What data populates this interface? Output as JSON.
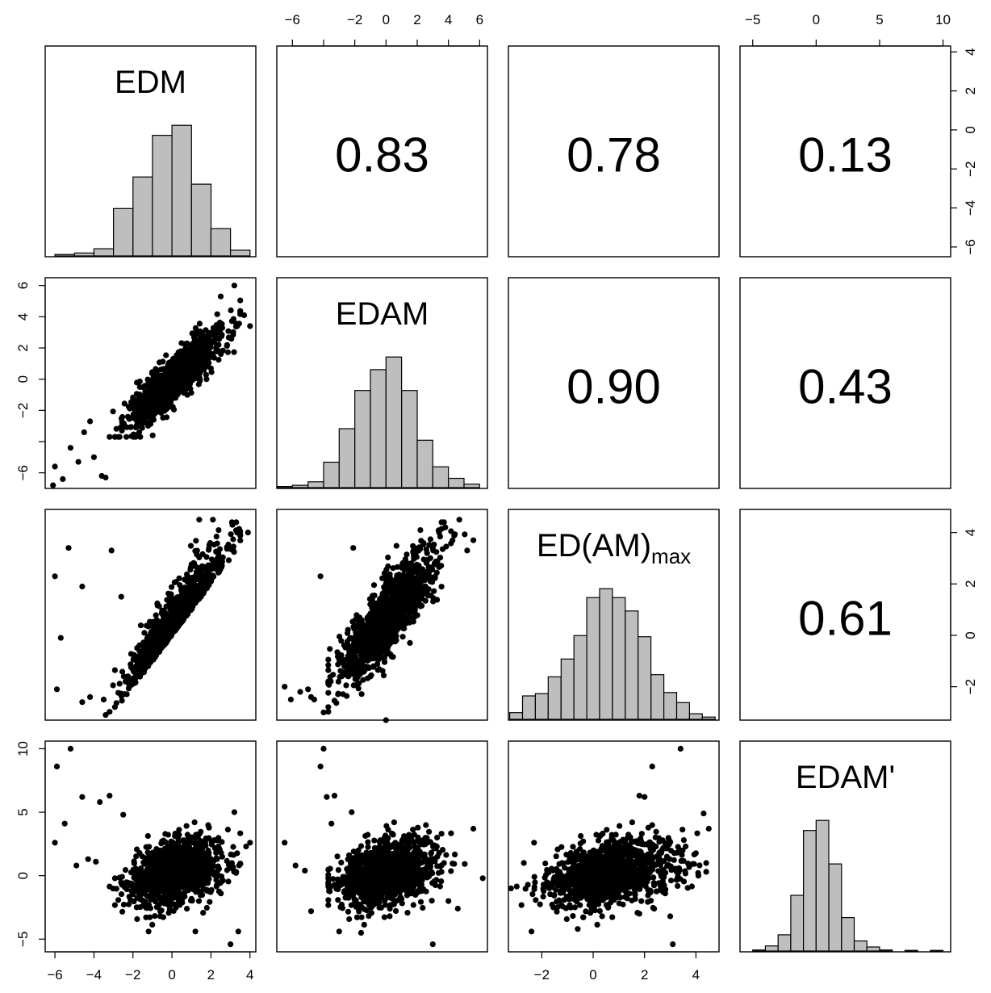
{
  "chart_data": {
    "type": "scatter",
    "kind": "pairs-matrix",
    "title": "",
    "variables": [
      {
        "key": "EDM",
        "label": "EDM",
        "label_base": "EDM",
        "label_sub": "",
        "range": [
          -6.5,
          4.3
        ],
        "ticks": [
          -6,
          -4,
          -2,
          0,
          2,
          4
        ]
      },
      {
        "key": "EDAM",
        "label": "EDAM",
        "label_base": "EDAM",
        "label_sub": "",
        "range": [
          -7.0,
          6.5
        ],
        "ticks": [
          -6,
          -4,
          -2,
          0,
          2,
          4,
          6
        ]
      },
      {
        "key": "EDAMmax",
        "label": "ED(AM)max",
        "label_base": "ED(AM)",
        "label_sub": "max",
        "range": [
          -3.3,
          4.9
        ],
        "ticks": [
          -2,
          0,
          2,
          4
        ]
      },
      {
        "key": "EDAMp",
        "label": "EDAM'",
        "label_base": "EDAM'",
        "label_sub": "",
        "range": [
          -6.0,
          10.6
        ],
        "ticks": [
          -5,
          0,
          5,
          10
        ]
      }
    ],
    "tick_labels": {
      "EDM": [
        "−6",
        "−4",
        "−2",
        "0",
        "2",
        "4"
      ],
      "EDAM": [
        "−6",
        "−4",
        "−2",
        "0",
        "2",
        "4",
        "6"
      ],
      "EDAMmax": [
        "−2",
        "0",
        "2",
        "4"
      ],
      "EDAMp": [
        "−5",
        "0",
        "5",
        "10"
      ]
    },
    "correlations": [
      {
        "row": 0,
        "col": 1,
        "value": "0.83"
      },
      {
        "row": 0,
        "col": 2,
        "value": "0.78"
      },
      {
        "row": 0,
        "col": 3,
        "value": "0.13"
      },
      {
        "row": 1,
        "col": 2,
        "value": "0.90"
      },
      {
        "row": 1,
        "col": 3,
        "value": "0.43"
      },
      {
        "row": 2,
        "col": 3,
        "value": "0.61"
      }
    ],
    "histograms": [
      {
        "variable": "EDM",
        "bins": [
          -6,
          -5,
          -4,
          -3,
          -2,
          -1,
          0,
          1,
          2,
          3,
          4
        ],
        "counts": [
          5,
          10,
          25,
          165,
          275,
          420,
          455,
          250,
          95,
          20
        ]
      },
      {
        "variable": "EDAM",
        "bins": [
          -7,
          -6,
          -5,
          -4,
          -3,
          -2,
          -1,
          0,
          1,
          2,
          3,
          4,
          5,
          6
        ],
        "counts": [
          5,
          10,
          25,
          110,
          255,
          420,
          510,
          565,
          420,
          205,
          90,
          40,
          15
        ]
      },
      {
        "variable": "EDAMmax",
        "bins": [
          -3.25,
          -2.75,
          -2.25,
          -1.75,
          -1.25,
          -0.75,
          -0.25,
          0.25,
          0.75,
          1.25,
          1.75,
          2.25,
          2.75,
          3.25,
          3.75,
          4.25,
          4.75
        ],
        "counts": [
          30,
          105,
          115,
          190,
          270,
          375,
          545,
          585,
          545,
          485,
          370,
          200,
          120,
          75,
          25,
          10
        ]
      },
      {
        "variable": "EDAMp",
        "bins": [
          -5,
          -4,
          -3,
          -2,
          -1,
          0,
          1,
          2,
          3,
          4,
          5,
          6,
          7,
          8,
          9,
          10,
          11
        ],
        "counts": [
          5,
          25,
          80,
          275,
          595,
          645,
          430,
          165,
          50,
          20,
          5,
          0,
          3,
          0,
          3,
          0
        ]
      }
    ],
    "scatter_notes": {
      "EDAM~EDM": {
        "relation": "positive linear",
        "slope": 1.12
      },
      "EDAMmax~EDM": {
        "relation": "bounded below by y = x",
        "slope": 1.0
      },
      "EDAMmax~EDAM": {
        "relation": "positive linear",
        "slope": 0.65
      },
      "EDAMp~EDM": {
        "relation": "weak",
        "slope": 0.15
      },
      "EDAMp~EDAM": {
        "relation": "weak positive",
        "slope": 0.3
      },
      "EDAMp~EDAMmax": {
        "relation": "moderate positive",
        "slope": 0.75
      }
    },
    "outliers": {
      "EDAM~EDM": [
        [
          -6.0,
          -5.6
        ],
        [
          -5.6,
          -6.4
        ],
        [
          -6.1,
          -6.8
        ],
        [
          -5.2,
          -4.4
        ],
        [
          -4.8,
          -5.3
        ],
        [
          -4.0,
          -5.0
        ],
        [
          -4.5,
          -3.4
        ],
        [
          -4.2,
          -2.7
        ],
        [
          -3.6,
          -6.2
        ],
        [
          -3.4,
          -6.3
        ],
        [
          2.5,
          5.3
        ],
        [
          3.2,
          6.0
        ],
        [
          3.7,
          4.1
        ],
        [
          4.0,
          3.4
        ]
      ],
      "EDAMmax~EDM": [
        [
          -6.0,
          2.3
        ],
        [
          -5.9,
          -2.1
        ],
        [
          -5.7,
          -0.1
        ],
        [
          -5.3,
          3.4
        ],
        [
          -4.6,
          1.9
        ],
        [
          -4.6,
          -2.6
        ],
        [
          -4.2,
          -2.4
        ],
        [
          -3.5,
          -2.5
        ],
        [
          -3.4,
          -3.1
        ],
        [
          -3.1,
          3.3
        ],
        [
          -2.6,
          1.5
        ],
        [
          1.4,
          4.5
        ],
        [
          2.1,
          4.5
        ],
        [
          3.1,
          4.3
        ],
        [
          3.9,
          4.0
        ]
      ],
      "EDAMmax~EDAM": [
        [
          -6.5,
          -2.0
        ],
        [
          -6.1,
          -2.5
        ],
        [
          -5.5,
          -2.2
        ],
        [
          -5.0,
          -2.1
        ],
        [
          -4.8,
          -2.4
        ],
        [
          -4.6,
          -2.5
        ],
        [
          -4.0,
          -3.0
        ],
        [
          -4.2,
          2.3
        ],
        [
          -2.1,
          3.4
        ],
        [
          1.9,
          3.2
        ],
        [
          3.8,
          4.2
        ],
        [
          4.7,
          4.5
        ],
        [
          5.6,
          3.7
        ],
        [
          5.2,
          3.3
        ],
        [
          -1.0,
          -1.6
        ],
        [
          0.0,
          -3.3
        ],
        [
          3.0,
          3.4
        ]
      ],
      "EDAMp~EDM": [
        [
          -5.9,
          8.6
        ],
        [
          -5.2,
          10.0
        ],
        [
          -5.5,
          4.1
        ],
        [
          -4.6,
          6.2
        ],
        [
          -4.3,
          1.3
        ],
        [
          -4.9,
          0.8
        ],
        [
          -3.7,
          5.8
        ],
        [
          -3.9,
          1.1
        ],
        [
          -3.2,
          6.3
        ],
        [
          -2.5,
          4.8
        ],
        [
          -6.0,
          2.6
        ],
        [
          3.0,
          -5.4
        ],
        [
          3.4,
          -4.4
        ],
        [
          3.2,
          5.0
        ],
        [
          3.8,
          2.3
        ],
        [
          4.0,
          2.6
        ],
        [
          1.2,
          -4.4
        ],
        [
          -1.2,
          -4.4
        ]
      ],
      "EDAMp~EDAM": [
        [
          -4.2,
          8.6
        ],
        [
          -4.0,
          10.0
        ],
        [
          -3.3,
          6.3
        ],
        [
          -3.8,
          6.2
        ],
        [
          -2.2,
          5.0
        ],
        [
          -5.2,
          0.4
        ],
        [
          -5.8,
          0.8
        ],
        [
          -6.5,
          2.6
        ],
        [
          -3.5,
          4.1
        ],
        [
          3.0,
          -5.4
        ],
        [
          4.6,
          -2.6
        ],
        [
          4.0,
          -2.0
        ],
        [
          5.6,
          3.7
        ],
        [
          6.2,
          -0.2
        ],
        [
          -4.8,
          -2.8
        ],
        [
          -3.0,
          -4.4
        ],
        [
          -1.6,
          -4.5
        ]
      ],
      "EDAMp~EDAMmax": [
        [
          2.3,
          8.6
        ],
        [
          3.4,
          10.0
        ],
        [
          1.8,
          6.3
        ],
        [
          2.0,
          6.2
        ],
        [
          4.3,
          4.9
        ],
        [
          4.5,
          3.7
        ],
        [
          -2.3,
          2.6
        ],
        [
          -2.7,
          1.0
        ],
        [
          -3.2,
          -1.0
        ],
        [
          -2.4,
          -4.4
        ],
        [
          -0.6,
          -4.2
        ],
        [
          3.1,
          -5.4
        ],
        [
          3.6,
          2.3
        ],
        [
          3.0,
          -3.2
        ],
        [
          1.8,
          -3.0
        ]
      ]
    }
  }
}
